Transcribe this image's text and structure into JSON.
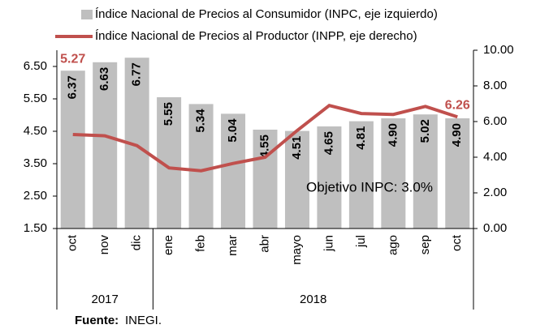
{
  "chart_data": {
    "type": "bar-line",
    "categories": [
      "oct",
      "nov",
      "dic",
      "ene",
      "feb",
      "mar",
      "abr",
      "mayo",
      "jun",
      "jul",
      "ago",
      "sep",
      "oct"
    ],
    "groups": [
      {
        "label": "2017",
        "span": 3
      },
      {
        "label": "2018",
        "span": 10
      }
    ],
    "series": [
      {
        "name": "Índice Nacional de Precios al Consumidor (INPC, eje izquierdo)",
        "color": "#bfbfbf",
        "type": "bar",
        "values": [
          6.37,
          6.63,
          6.77,
          5.55,
          5.34,
          5.04,
          4.55,
          4.51,
          4.65,
          4.81,
          4.9,
          5.02,
          4.9
        ],
        "value_labels": [
          "6.37",
          "6.63",
          "6.77",
          "5.55",
          "5.34",
          "5.04",
          "4.55",
          "4.51",
          "4.65",
          "4.81",
          "4.90",
          "5.02",
          "4.90"
        ]
      },
      {
        "name": "Índice Nacional de Precios al Productor (INPP, eje derecho)",
        "color": "#c0504d",
        "type": "line",
        "axis": "y2",
        "values": [
          5.27,
          5.2,
          4.65,
          3.4,
          3.24,
          3.65,
          4.0,
          5.5,
          6.9,
          6.45,
          6.4,
          6.85,
          6.26
        ],
        "value_labels": [
          "5.27",
          null,
          null,
          null,
          null,
          null,
          null,
          null,
          null,
          null,
          null,
          null,
          "6.26"
        ]
      }
    ],
    "ylim": [
      1.5,
      7.0
    ],
    "yticks": [
      {
        "value": 1.5,
        "label": "1.50"
      },
      {
        "value": 2.5,
        "label": "2.50"
      },
      {
        "value": 3.5,
        "label": "3.50"
      },
      {
        "value": 4.5,
        "label": "4.50"
      },
      {
        "value": 5.5,
        "label": "5.50"
      },
      {
        "value": 6.5,
        "label": "6.50"
      }
    ],
    "y2lim": [
      0,
      10
    ],
    "y2ticks": [
      {
        "value": 0,
        "label": "0.00"
      },
      {
        "value": 2,
        "label": "2.00"
      },
      {
        "value": 4,
        "label": "4.00"
      },
      {
        "value": 6,
        "label": "6.00"
      },
      {
        "value": 8,
        "label": "8.00"
      },
      {
        "value": 10,
        "label": "10.00"
      }
    ],
    "annotation": "Objetivo INPC: 3.0%",
    "source": {
      "label": "Fuente:",
      "text": "INEGI."
    }
  }
}
